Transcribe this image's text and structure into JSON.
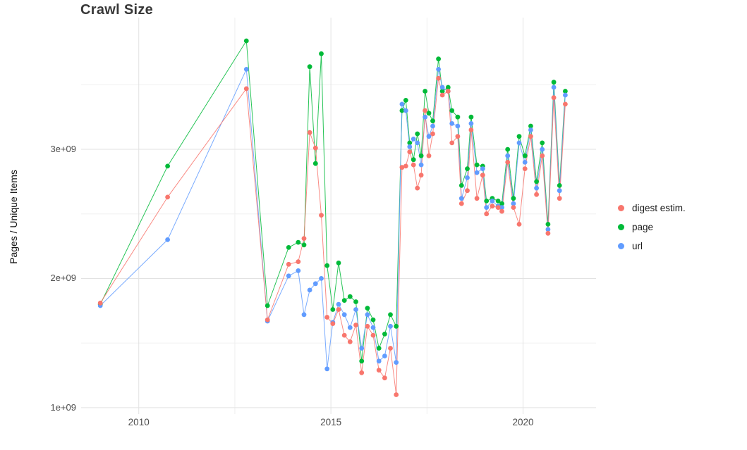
{
  "chart_data": {
    "type": "line",
    "subtype": "scatter-line-timeseries",
    "title": "Crawl Size",
    "xlabel": "",
    "ylabel": "Pages / Unique Items",
    "grid": true,
    "legend_position": "right",
    "x_axis": {
      "unit": "year (decimal)",
      "lim": [
        2008.5,
        2021.9
      ],
      "major_ticks": [
        2010,
        2015,
        2020
      ],
      "tick_labels": [
        "2010",
        "2015",
        "2020"
      ],
      "minor_ticks": [
        2012.5,
        2017.5
      ]
    },
    "y_axis": {
      "unit": "items, value shown is in multiples of 1e9",
      "lim": [
        0.95,
        4.02
      ],
      "major_ticks": [
        1,
        2,
        3
      ],
      "tick_labels": [
        "1e+09",
        "2e+09",
        "3e+09"
      ],
      "minor_ticks": [
        1.5,
        2.5,
        3.5
      ]
    },
    "x": [
      2009.0,
      2010.75,
      2012.8,
      2013.35,
      2013.9,
      2014.15,
      2014.3,
      2014.45,
      2014.6,
      2014.75,
      2014.9,
      2015.05,
      2015.2,
      2015.35,
      2015.5,
      2015.65,
      2015.8,
      2015.95,
      2016.1,
      2016.25,
      2016.4,
      2016.55,
      2016.7,
      2016.85,
      2016.95,
      2017.05,
      2017.15,
      2017.25,
      2017.35,
      2017.45,
      2017.55,
      2017.65,
      2017.8,
      2017.9,
      2018.05,
      2018.15,
      2018.3,
      2018.4,
      2018.55,
      2018.65,
      2018.8,
      2018.95,
      2019.05,
      2019.2,
      2019.35,
      2019.45,
      2019.6,
      2019.75,
      2019.9,
      2020.05,
      2020.2,
      2020.35,
      2020.5,
      2020.65,
      2020.8,
      2020.95,
      2021.1
    ],
    "series": [
      {
        "name": "digest estim.",
        "color": "#F8766D",
        "values_e9": [
          1.81,
          2.63,
          3.47,
          1.68,
          2.11,
          2.13,
          2.31,
          3.13,
          3.01,
          2.49,
          1.7,
          1.65,
          1.76,
          1.56,
          1.51,
          1.64,
          1.27,
          1.63,
          1.56,
          1.29,
          1.23,
          1.46,
          1.1,
          2.86,
          2.87,
          2.98,
          2.88,
          2.7,
          2.8,
          3.3,
          2.95,
          3.12,
          3.55,
          3.42,
          3.45,
          3.05,
          3.1,
          2.58,
          2.68,
          3.15,
          2.62,
          2.8,
          2.5,
          2.56,
          2.55,
          2.52,
          2.9,
          2.55,
          2.42,
          2.85,
          3.1,
          2.65,
          2.95,
          2.35,
          3.4,
          2.62,
          3.35
        ]
      },
      {
        "name": "page",
        "color": "#00BA38",
        "values_e9": [
          1.8,
          2.87,
          3.84,
          1.79,
          2.24,
          2.28,
          2.26,
          3.64,
          2.89,
          3.74,
          2.1,
          1.76,
          2.12,
          1.83,
          1.86,
          1.82,
          1.36,
          1.77,
          1.68,
          1.46,
          1.57,
          1.72,
          1.63,
          3.3,
          3.38,
          3.05,
          2.92,
          3.12,
          2.95,
          3.45,
          3.28,
          3.22,
          3.7,
          3.45,
          3.48,
          3.3,
          3.25,
          2.72,
          2.85,
          3.25,
          2.88,
          2.87,
          2.6,
          2.62,
          2.6,
          2.58,
          3.0,
          2.62,
          3.1,
          2.95,
          3.18,
          2.75,
          3.05,
          2.42,
          3.52,
          2.72,
          3.45
        ]
      },
      {
        "name": "url",
        "color": "#619CFF",
        "values_e9": [
          1.79,
          2.3,
          3.62,
          1.67,
          2.02,
          2.06,
          1.72,
          1.91,
          1.96,
          2.0,
          1.3,
          1.66,
          1.8,
          1.72,
          1.62,
          1.76,
          1.46,
          1.72,
          1.62,
          1.36,
          1.4,
          1.63,
          1.35,
          3.35,
          3.3,
          3.02,
          3.08,
          3.05,
          2.88,
          3.25,
          3.1,
          3.18,
          3.62,
          3.48,
          3.45,
          3.2,
          3.18,
          2.62,
          2.78,
          3.2,
          2.82,
          2.85,
          2.55,
          2.6,
          2.56,
          2.55,
          2.95,
          2.58,
          3.05,
          2.9,
          3.15,
          2.7,
          3.0,
          2.38,
          3.48,
          2.68,
          3.42
        ]
      }
    ],
    "colors": {
      "grid_major": "#e2e2e2",
      "grid_minor": "#f0f0f0",
      "tick_text": "#4d4d4d"
    }
  }
}
